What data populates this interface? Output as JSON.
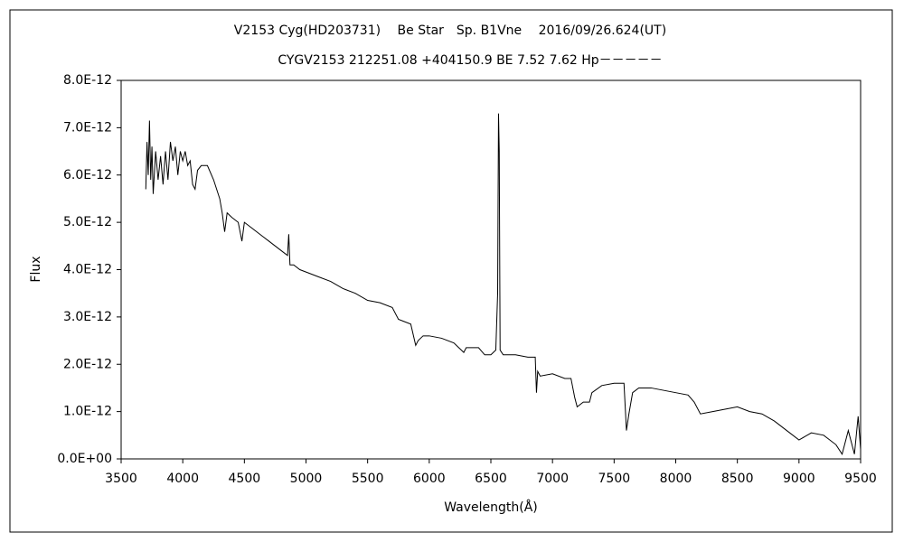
{
  "chart_data": {
    "type": "line",
    "title": "V2153 Cyg(HD203731)　 Be Star　Sp. B1Vne　 2016/09/26.624(UT)",
    "subtitle": "CYGV2153 212251.08 +404150.9 BE 7.52 7.62 Hp－－－－－",
    "x_label": "Wavelength(Å)",
    "y_label": "Flux",
    "xlim": [
      3500,
      9500
    ],
    "xticks": [
      3500,
      4000,
      4500,
      5000,
      5500,
      6000,
      6500,
      7000,
      7500,
      8000,
      8500,
      9000,
      9500
    ],
    "ylim": [
      0,
      8e-12
    ],
    "yticks": [
      {
        "value": 0,
        "label": "0.0E+00"
      },
      {
        "value": 1e-12,
        "label": "1.0E-12"
      },
      {
        "value": 2e-12,
        "label": "2.0E-12"
      },
      {
        "value": 3e-12,
        "label": "3.0E-12"
      },
      {
        "value": 4e-12,
        "label": "4.0E-12"
      },
      {
        "value": 5e-12,
        "label": "5.0E-12"
      },
      {
        "value": 6e-12,
        "label": "6.0E-12"
      },
      {
        "value": 7e-12,
        "label": "7.0E-12"
      },
      {
        "value": 8e-12,
        "label": "8.0E-12"
      }
    ],
    "color": "#000000",
    "x": [
      3700,
      3710,
      3720,
      3730,
      3740,
      3750,
      3760,
      3780,
      3800,
      3820,
      3840,
      3860,
      3880,
      3900,
      3920,
      3940,
      3960,
      3980,
      4000,
      4020,
      4040,
      4060,
      4080,
      4100,
      4120,
      4150,
      4200,
      4250,
      4300,
      4320,
      4340,
      4360,
      4400,
      4450,
      4480,
      4500,
      4550,
      4600,
      4650,
      4700,
      4750,
      4800,
      4850,
      4860,
      4870,
      4900,
      4950,
      5000,
      5100,
      5200,
      5300,
      5400,
      5500,
      5600,
      5700,
      5750,
      5800,
      5850,
      5890,
      5910,
      5950,
      6000,
      6100,
      6200,
      6280,
      6300,
      6400,
      6450,
      6500,
      6540,
      6555,
      6562,
      6568,
      6575,
      6600,
      6700,
      6800,
      6860,
      6870,
      6880,
      6900,
      7000,
      7100,
      7150,
      7180,
      7200,
      7250,
      7300,
      7320,
      7400,
      7500,
      7580,
      7600,
      7620,
      7650,
      7700,
      7800,
      7900,
      8000,
      8100,
      8150,
      8200,
      8300,
      8400,
      8500,
      8600,
      8700,
      8800,
      8900,
      9000,
      9100,
      9200,
      9300,
      9350,
      9400,
      9450,
      9480,
      9500
    ],
    "values": [
      5.7e-12,
      6.7e-12,
      6e-12,
      7.15e-12,
      5.9e-12,
      6.6e-12,
      5.6e-12,
      6.5e-12,
      5.9e-12,
      6.4e-12,
      5.8e-12,
      6.5e-12,
      5.9e-12,
      6.7e-12,
      6.3e-12,
      6.6e-12,
      6e-12,
      6.5e-12,
      6.3e-12,
      6.5e-12,
      6.2e-12,
      6.3e-12,
      5.8e-12,
      5.7e-12,
      6.1e-12,
      6.2e-12,
      6.2e-12,
      5.9e-12,
      5.5e-12,
      5.2e-12,
      4.8e-12,
      5.2e-12,
      5.1e-12,
      5e-12,
      4.6e-12,
      5e-12,
      4.9e-12,
      4.8e-12,
      4.7e-12,
      4.6e-12,
      4.5e-12,
      4.4e-12,
      4.3e-12,
      4.75e-12,
      4.1e-12,
      4.1e-12,
      4e-12,
      3.95e-12,
      3.85e-12,
      3.75e-12,
      3.6e-12,
      3.5e-12,
      3.35e-12,
      3.3e-12,
      3.2e-12,
      2.95e-12,
      2.9e-12,
      2.85e-12,
      2.4e-12,
      2.5e-12,
      2.6e-12,
      2.6e-12,
      2.55e-12,
      2.45e-12,
      2.25e-12,
      2.35e-12,
      2.35e-12,
      2.2e-12,
      2.2e-12,
      2.3e-12,
      3.5e-12,
      7.3e-12,
      6.5e-12,
      2.3e-12,
      2.2e-12,
      2.2e-12,
      2.15e-12,
      2.15e-12,
      1.4e-12,
      1.85e-12,
      1.75e-12,
      1.8e-12,
      1.7e-12,
      1.7e-12,
      1.3e-12,
      1.1e-12,
      1.2e-12,
      1.2e-12,
      1.4e-12,
      1.55e-12,
      1.6e-12,
      1.6e-12,
      6e-13,
      9.5e-13,
      1.4e-12,
      1.5e-12,
      1.5e-12,
      1.45e-12,
      1.4e-12,
      1.35e-12,
      1.2e-12,
      9.5e-13,
      1e-12,
      1.05e-12,
      1.1e-12,
      1e-12,
      9.5e-13,
      8e-13,
      6e-13,
      4e-13,
      5.5e-13,
      5e-13,
      3e-13,
      1e-13,
      6e-13,
      1e-13,
      9e-13,
      2e-13
    ]
  }
}
